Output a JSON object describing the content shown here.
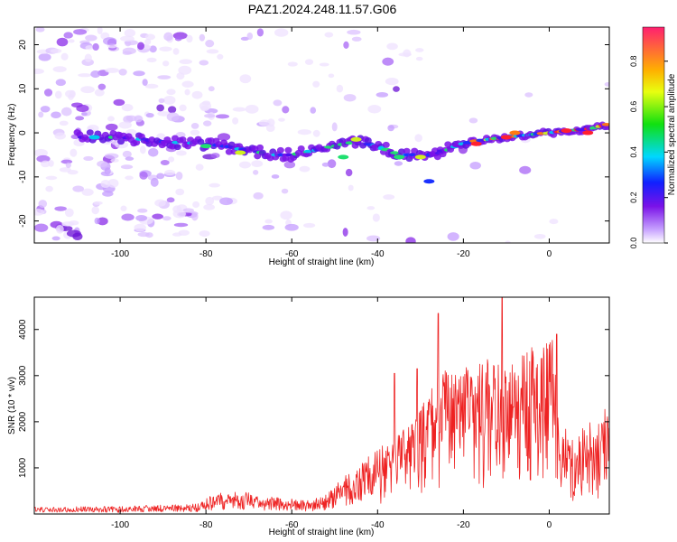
{
  "title": "PAZ1.2024.248.11.57.G06",
  "colors": {
    "snr_line": "#ee2222",
    "spectro_low": "#e8d8ff",
    "spectro_mid": "#7a12e8",
    "spectro_high": "#ff2030"
  },
  "chart_data": [
    {
      "type": "heatmap",
      "name": "spectrogram",
      "xlabel": "Height of straight line (km)",
      "ylabel": "Frequency (Hz)",
      "xlim": [
        -120,
        14
      ],
      "ylim": [
        -25,
        24
      ],
      "xticks": [
        -100,
        -80,
        -60,
        -40,
        -20,
        0
      ],
      "yticks": [
        -20,
        -10,
        0,
        10,
        20
      ],
      "grid": false,
      "ridge_x": [
        -108,
        -100,
        -90,
        -80,
        -76,
        -70,
        -64,
        -60,
        -55,
        -50,
        -45,
        -40,
        -35,
        -30,
        -27,
        -22,
        -18,
        -14,
        -10,
        -5,
        0,
        5,
        10,
        14
      ],
      "ridge_y": [
        -1,
        -1,
        -2,
        -2.5,
        -3,
        -4,
        -5,
        -5,
        -4,
        -3,
        -2,
        -3,
        -5,
        -5,
        -5,
        -3,
        -2,
        -1.5,
        -1,
        -0.5,
        0,
        0.5,
        1,
        2
      ],
      "colorbar": {
        "label": "Normalized spectral amplitude",
        "range": [
          0,
          0.95
        ],
        "ticks": [
          0.0,
          0.2,
          0.4,
          0.6,
          0.8
        ]
      }
    },
    {
      "type": "line",
      "name": "snr",
      "xlabel": "Height of straight line (km)",
      "ylabel": "SNR (10 * v/v)",
      "xlim": [
        -120,
        14
      ],
      "ylim": [
        0,
        4700
      ],
      "xticks": [
        -100,
        -80,
        -60,
        -40,
        -20,
        0
      ],
      "yticks": [
        1000,
        2000,
        3000,
        4000
      ],
      "grid": false,
      "envelope_x": [
        -120,
        -100,
        -82,
        -78,
        -72,
        -66,
        -56,
        -52,
        -48,
        -44,
        -40,
        -36,
        -32,
        -28,
        -25,
        -22,
        -19,
        -16,
        -13,
        -11,
        -8,
        -5,
        -2,
        1,
        2,
        3,
        6,
        9,
        11,
        13,
        14
      ],
      "envelope_y": [
        150,
        170,
        220,
        450,
        500,
        380,
        300,
        420,
        800,
        1100,
        1400,
        1700,
        2000,
        2600,
        3200,
        3000,
        3200,
        3300,
        3500,
        3200,
        3300,
        3600,
        3650,
        3800,
        2200,
        2000,
        1500,
        2100,
        1900,
        2400,
        2000
      ],
      "peaks": [
        {
          "x": -25.8,
          "y": 4350
        },
        {
          "x": -11.0,
          "y": 4700
        },
        {
          "x": -36.0,
          "y": 3050
        },
        {
          "x": -30.8,
          "y": 3150
        },
        {
          "x": 1.8,
          "y": 3900
        }
      ]
    }
  ]
}
